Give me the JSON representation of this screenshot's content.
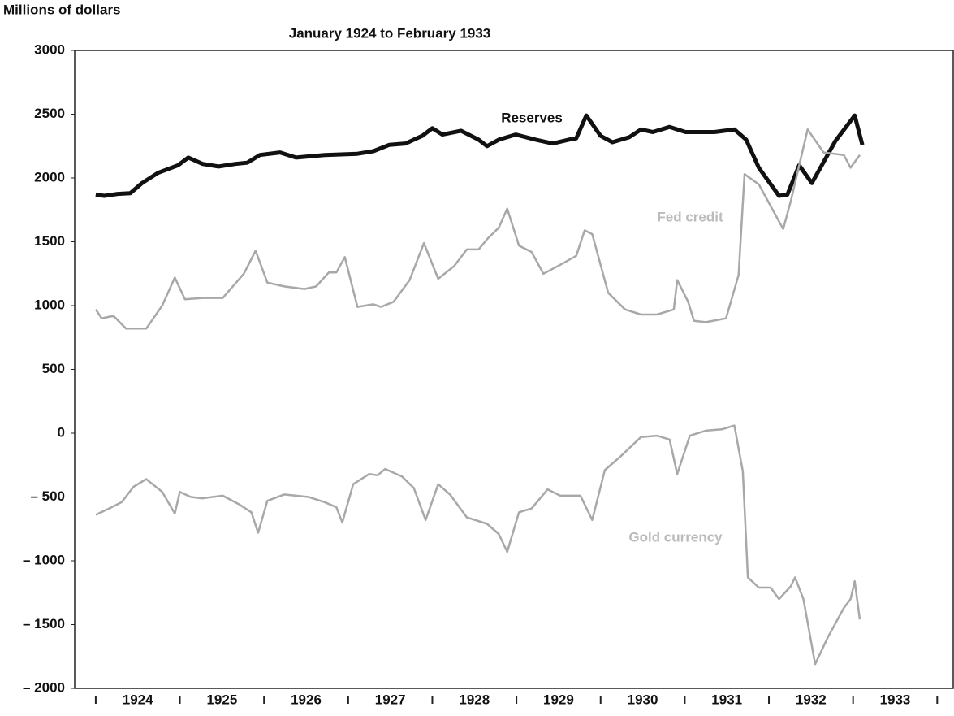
{
  "chart_data": {
    "type": "line",
    "title": "January 1924 to February 1933",
    "y_label": "Millions of dollars",
    "xlim": [
      1923.75,
      1934.19
    ],
    "ylim": [
      -2000,
      3000
    ],
    "yticks": [
      {
        "value": -2000,
        "label": "– 2000"
      },
      {
        "value": -1500,
        "label": "– 1500"
      },
      {
        "value": -1000,
        "label": "– 1000"
      },
      {
        "value": -500,
        "label": "– 500"
      },
      0,
      500,
      1000,
      1500,
      2000,
      2500,
      3000
    ],
    "xticks": [
      {
        "value": 1924.5,
        "label": "1924"
      },
      {
        "value": 1925.5,
        "label": "1925"
      },
      {
        "value": 1926.5,
        "label": "1926"
      },
      {
        "value": 1927.5,
        "label": "1927"
      },
      {
        "value": 1928.5,
        "label": "1928"
      },
      {
        "value": 1929.5,
        "label": "1929"
      },
      {
        "value": 1930.5,
        "label": "1930"
      },
      {
        "value": 1931.5,
        "label": "1931"
      },
      {
        "value": 1932.5,
        "label": "1932"
      },
      {
        "value": 1933.5,
        "label": "1933"
      }
    ],
    "series": [
      {
        "name": "Reserves",
        "color": "#111111",
        "x": [
          1924.0,
          1924.1,
          1924.26,
          1924.41,
          1924.55,
          1924.74,
          1924.98,
          1925.1,
          1925.27,
          1925.46,
          1925.66,
          1925.8,
          1925.95,
          1926.19,
          1926.38,
          1926.72,
          1927.11,
          1927.3,
          1927.49,
          1927.68,
          1927.88,
          1928.0,
          1928.12,
          1928.34,
          1928.55,
          1928.65,
          1928.79,
          1928.99,
          1929.23,
          1929.43,
          1929.62,
          1929.71,
          1929.83,
          1930.0,
          1930.14,
          1930.34,
          1930.48,
          1930.62,
          1930.82,
          1931.01,
          1931.35,
          1931.59,
          1931.73,
          1931.88,
          1932.12,
          1932.22,
          1932.36,
          1932.51,
          1932.79,
          1933.02,
          1933.11
        ],
        "values": [
          1870,
          1860,
          1875,
          1880,
          1960,
          2040,
          2100,
          2160,
          2110,
          2090,
          2110,
          2120,
          2180,
          2200,
          2160,
          2180,
          2190,
          2210,
          2260,
          2270,
          2330,
          2390,
          2340,
          2370,
          2300,
          2250,
          2300,
          2340,
          2300,
          2270,
          2300,
          2310,
          2490,
          2330,
          2280,
          2320,
          2380,
          2360,
          2400,
          2360,
          2360,
          2380,
          2300,
          2080,
          1860,
          1870,
          2100,
          1960,
          2290,
          2490,
          2260
        ]
      },
      {
        "name": "Fed credit",
        "color": "#a8a8a8",
        "x": [
          1924.0,
          1924.07,
          1924.21,
          1924.36,
          1924.6,
          1924.79,
          1924.94,
          1925.06,
          1925.27,
          1925.51,
          1925.76,
          1925.9,
          1926.04,
          1926.24,
          1926.48,
          1926.62,
          1926.77,
          1926.86,
          1926.96,
          1927.11,
          1927.3,
          1927.39,
          1927.54,
          1927.73,
          1927.9,
          1928.07,
          1928.26,
          1928.41,
          1928.55,
          1928.65,
          1928.79,
          1928.89,
          1929.03,
          1929.18,
          1929.32,
          1929.52,
          1929.71,
          1929.81,
          1929.9,
          1930.09,
          1930.29,
          1930.48,
          1930.67,
          1930.87,
          1930.91,
          1931.04,
          1931.11,
          1931.25,
          1931.49,
          1931.64,
          1931.71,
          1931.88,
          1932.17,
          1932.26,
          1932.46,
          1932.65,
          1932.89,
          1932.97,
          1933.08
        ],
        "values": [
          970,
          900,
          920,
          820,
          820,
          1000,
          1220,
          1050,
          1060,
          1060,
          1250,
          1430,
          1180,
          1150,
          1130,
          1150,
          1260,
          1260,
          1380,
          990,
          1010,
          990,
          1030,
          1200,
          1490,
          1210,
          1310,
          1440,
          1440,
          1520,
          1610,
          1760,
          1470,
          1420,
          1250,
          1320,
          1390,
          1590,
          1560,
          1100,
          970,
          930,
          930,
          970,
          1200,
          1030,
          880,
          870,
          900,
          1240,
          2030,
          1950,
          1600,
          1820,
          2380,
          2200,
          2180,
          2080,
          2180
        ]
      },
      {
        "name": "Gold currency",
        "color": "#a8a8a8",
        "x": [
          1924.0,
          1924.16,
          1924.31,
          1924.45,
          1924.6,
          1924.79,
          1924.94,
          1925.0,
          1925.13,
          1925.27,
          1925.51,
          1925.71,
          1925.85,
          1925.93,
          1926.04,
          1926.24,
          1926.53,
          1926.72,
          1926.86,
          1926.93,
          1927.06,
          1927.25,
          1927.35,
          1927.44,
          1927.64,
          1927.78,
          1927.92,
          1928.07,
          1928.21,
          1928.41,
          1928.65,
          1928.79,
          1928.89,
          1929.03,
          1929.18,
          1929.37,
          1929.52,
          1929.76,
          1929.9,
          1930.05,
          1930.24,
          1930.48,
          1930.67,
          1930.82,
          1930.91,
          1931.06,
          1931.25,
          1931.44,
          1931.59,
          1931.69,
          1931.75,
          1931.88,
          1932.02,
          1932.12,
          1932.26,
          1932.31,
          1932.41,
          1932.55,
          1932.7,
          1932.89,
          1932.97,
          1933.02,
          1933.08
        ],
        "values": [
          -640,
          -590,
          -540,
          -420,
          -360,
          -460,
          -630,
          -460,
          -500,
          -510,
          -490,
          -560,
          -620,
          -780,
          -530,
          -480,
          -500,
          -540,
          -580,
          -700,
          -400,
          -320,
          -330,
          -280,
          -340,
          -430,
          -680,
          -400,
          -480,
          -660,
          -710,
          -790,
          -930,
          -620,
          -590,
          -440,
          -490,
          -490,
          -680,
          -290,
          -180,
          -30,
          -20,
          -50,
          -320,
          -20,
          20,
          30,
          60,
          -300,
          -1130,
          -1210,
          -1210,
          -1300,
          -1200,
          -1130,
          -1300,
          -1810,
          -1600,
          -1370,
          -1300,
          -1160,
          -1460
        ]
      }
    ]
  }
}
